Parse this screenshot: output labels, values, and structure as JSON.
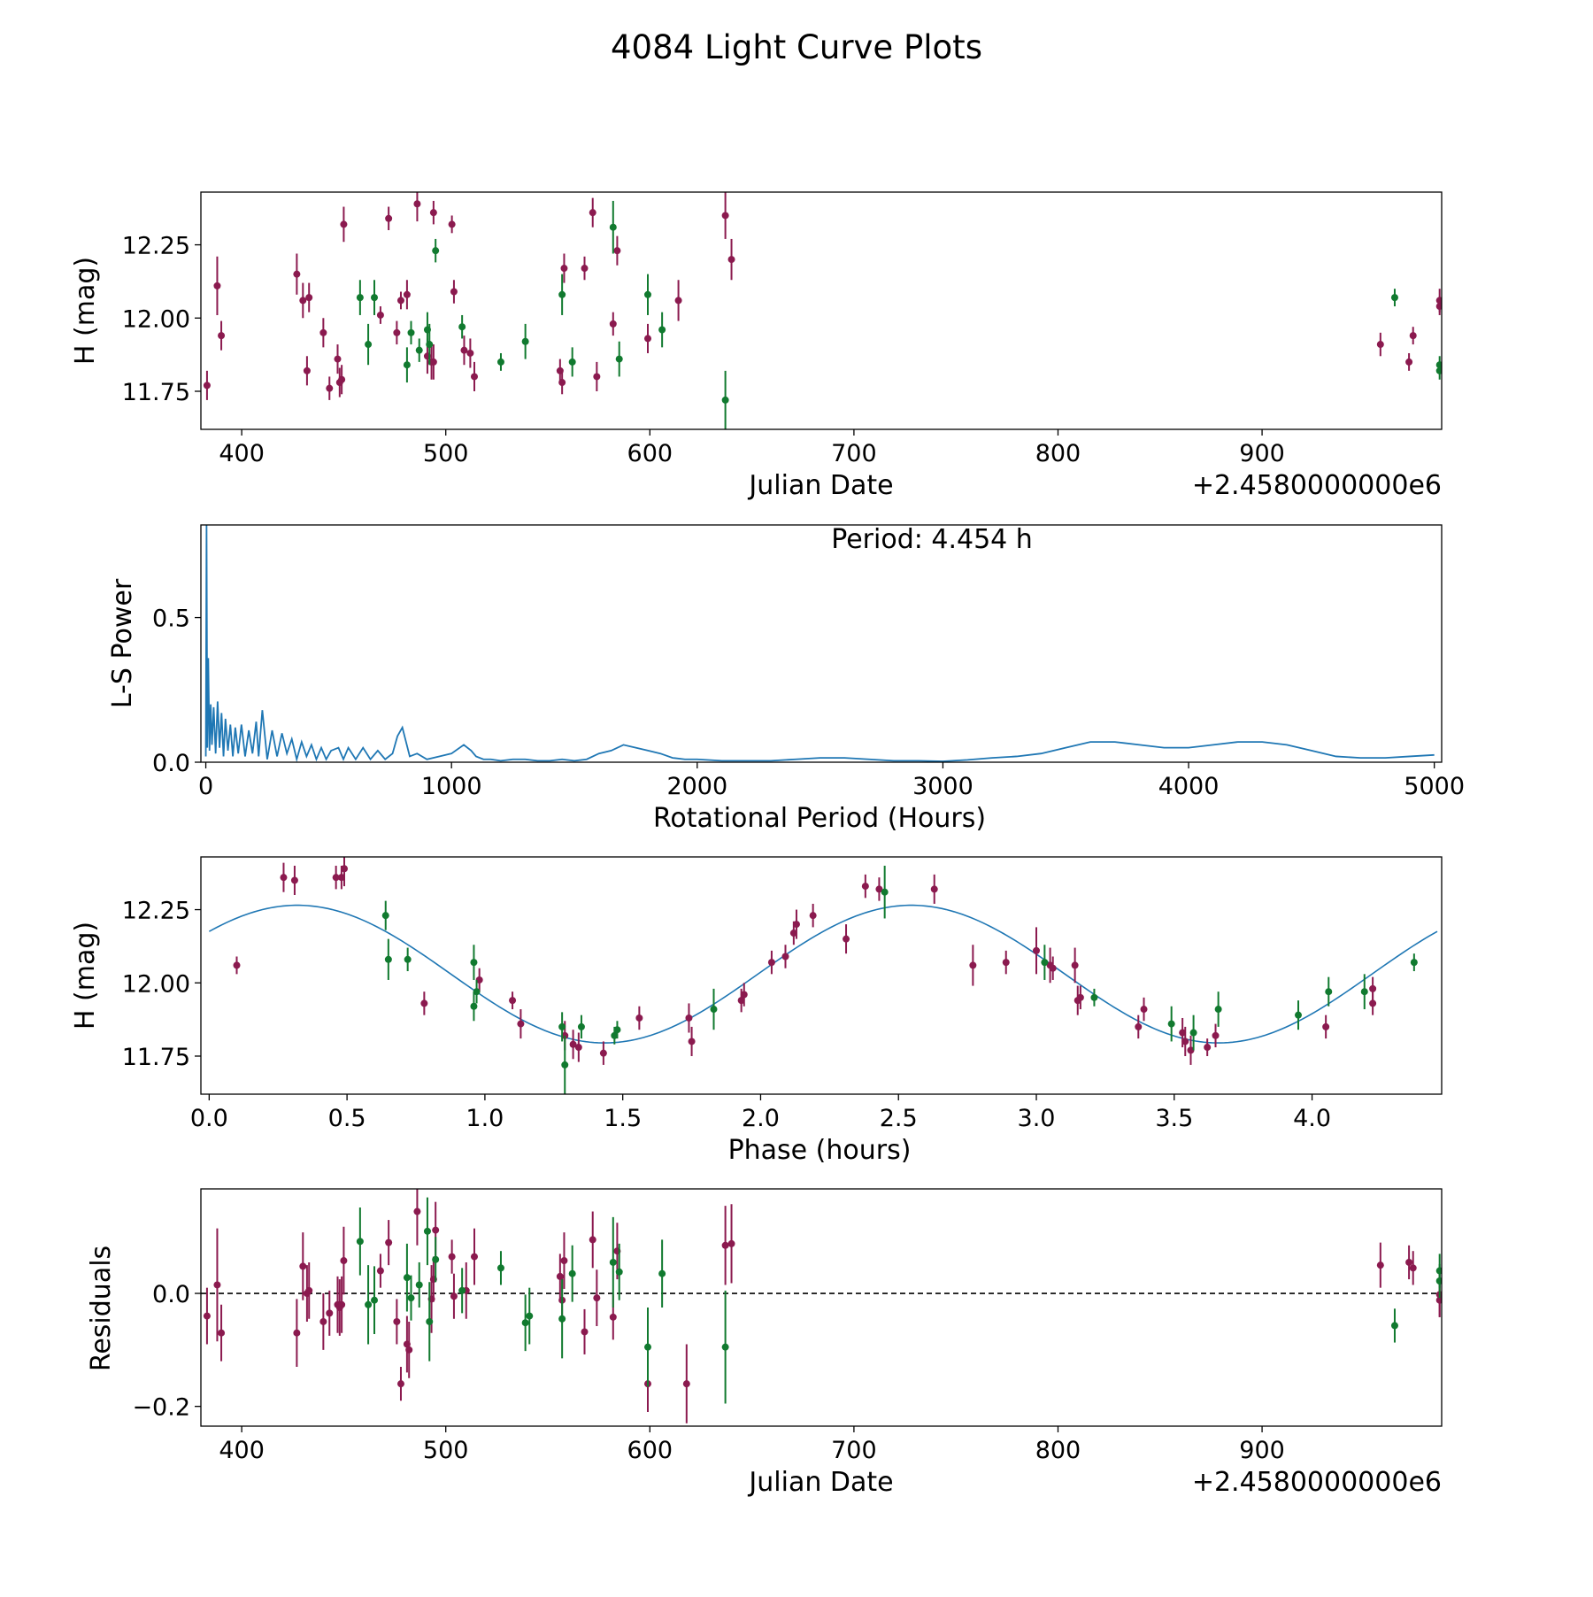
{
  "title": "4084 Light Curve Plots",
  "colors": {
    "red": "#8b1a4f",
    "green": "#117a2f",
    "line": "#1f77b4",
    "axis": "#000000"
  },
  "chart_data": [
    {
      "id": "lightcurve",
      "type": "scatter",
      "xlabel": "Julian Date",
      "ylabel": "H (mag)",
      "x_offset_label": "+2.4580000000e6",
      "xlim": [
        380,
        988
      ],
      "ylim": [
        11.62,
        12.43
      ],
      "xticks": [
        400,
        500,
        600,
        700,
        800,
        900
      ],
      "xtick_labels": [
        "400",
        "500",
        "600",
        "700",
        "800",
        "900"
      ],
      "yticks": [
        11.75,
        12.0,
        12.25
      ],
      "ytick_labels": [
        "11.75",
        "12.00",
        "12.25"
      ],
      "series": [
        {
          "name": "red",
          "color": "#8b1a4f",
          "x": [
            383,
            388,
            390,
            427,
            430,
            432,
            433,
            440,
            443,
            447,
            448,
            449,
            450,
            468,
            472,
            476,
            478,
            481,
            486,
            491,
            493,
            494,
            494,
            503,
            504,
            509,
            512,
            514,
            556,
            557,
            558,
            568,
            572,
            574,
            582,
            584,
            599,
            614,
            637,
            640,
            958,
            972,
            974,
            987,
            987
          ],
          "y": [
            11.77,
            12.11,
            11.94,
            12.15,
            12.06,
            11.82,
            12.07,
            11.95,
            11.76,
            11.86,
            11.78,
            11.79,
            12.32,
            12.01,
            12.34,
            11.95,
            12.06,
            12.08,
            12.39,
            11.87,
            11.85,
            12.36,
            11.85,
            12.32,
            12.09,
            11.89,
            11.88,
            11.8,
            11.82,
            11.78,
            12.17,
            12.17,
            12.36,
            11.8,
            11.98,
            12.23,
            11.93,
            12.06,
            12.35,
            12.2,
            11.91,
            11.85,
            11.94,
            12.06,
            12.04
          ],
          "err": [
            0.05,
            0.1,
            0.05,
            0.07,
            0.06,
            0.05,
            0.05,
            0.05,
            0.04,
            0.05,
            0.05,
            0.05,
            0.06,
            0.03,
            0.04,
            0.04,
            0.03,
            0.05,
            0.06,
            0.06,
            0.06,
            0.04,
            0.06,
            0.03,
            0.04,
            0.05,
            0.05,
            0.05,
            0.04,
            0.04,
            0.05,
            0.04,
            0.05,
            0.05,
            0.04,
            0.05,
            0.05,
            0.07,
            0.08,
            0.07,
            0.04,
            0.03,
            0.03,
            0.04,
            0.03
          ]
        },
        {
          "name": "green",
          "color": "#117a2f",
          "x": [
            458,
            462,
            465,
            481,
            483,
            487,
            491,
            492,
            495,
            508,
            527,
            539,
            557,
            562,
            582,
            585,
            599,
            606,
            637,
            965,
            987,
            987
          ],
          "y": [
            12.07,
            11.91,
            12.07,
            11.84,
            11.95,
            11.89,
            11.96,
            11.91,
            12.23,
            11.97,
            11.85,
            11.92,
            12.08,
            11.85,
            12.31,
            11.86,
            12.08,
            11.96,
            11.72,
            12.07,
            11.84,
            11.82
          ],
          "err": [
            0.06,
            0.07,
            0.06,
            0.06,
            0.04,
            0.04,
            0.06,
            0.07,
            0.04,
            0.04,
            0.03,
            0.06,
            0.07,
            0.05,
            0.09,
            0.06,
            0.07,
            0.06,
            0.1,
            0.03,
            0.03,
            0.03
          ]
        }
      ]
    },
    {
      "id": "periodogram",
      "type": "line",
      "xlabel": "Rotational Period (Hours)",
      "ylabel": "L-S Power",
      "annotation": "Period: 4.454 h",
      "xlim": [
        -20,
        5030
      ],
      "ylim": [
        0.0,
        0.82
      ],
      "xticks": [
        0,
        1000,
        2000,
        3000,
        4000,
        5000
      ],
      "xtick_labels": [
        "0",
        "1000",
        "2000",
        "3000",
        "4000",
        "5000"
      ],
      "yticks": [
        0.0,
        0.5
      ],
      "ytick_labels": [
        "0.0",
        "0.5"
      ],
      "series": [
        {
          "name": "power",
          "color": "#1f77b4",
          "x": [
            0,
            3,
            6,
            10,
            15,
            20,
            25,
            32,
            40,
            48,
            56,
            64,
            72,
            80,
            90,
            100,
            110,
            120,
            132,
            145,
            160,
            175,
            190,
            205,
            215,
            230,
            250,
            270,
            290,
            310,
            330,
            350,
            370,
            390,
            410,
            430,
            450,
            470,
            490,
            510,
            540,
            560,
            580,
            610,
            640,
            670,
            700,
            730,
            760,
            780,
            800,
            830,
            860,
            900,
            950,
            1000,
            1050,
            1080,
            1100,
            1130,
            1160,
            1200,
            1250,
            1300,
            1350,
            1400,
            1450,
            1500,
            1550,
            1600,
            1650,
            1700,
            1750,
            1800,
            1850,
            1900,
            1950,
            2000,
            2100,
            2200,
            2300,
            2400,
            2500,
            2600,
            2700,
            2800,
            2900,
            3000,
            3100,
            3200,
            3300,
            3400,
            3500,
            3600,
            3700,
            3800,
            3900,
            4000,
            4100,
            4200,
            4300,
            4400,
            4500,
            4600,
            4700,
            4800,
            4900,
            5000
          ],
          "y": [
            0.02,
            0.82,
            0.05,
            0.36,
            0.04,
            0.2,
            0.06,
            0.19,
            0.03,
            0.21,
            0.05,
            0.17,
            0.02,
            0.15,
            0.04,
            0.13,
            0.02,
            0.12,
            0.03,
            0.13,
            0.02,
            0.11,
            0.03,
            0.14,
            0.02,
            0.18,
            0.01,
            0.11,
            0.02,
            0.1,
            0.03,
            0.08,
            0.01,
            0.07,
            0.02,
            0.06,
            0.01,
            0.05,
            0.01,
            0.04,
            0.05,
            0.01,
            0.05,
            0.01,
            0.05,
            0.01,
            0.04,
            0.01,
            0.03,
            0.09,
            0.12,
            0.02,
            0.03,
            0.01,
            0.02,
            0.03,
            0.06,
            0.04,
            0.02,
            0.01,
            0.01,
            0.005,
            0.01,
            0.01,
            0.005,
            0.005,
            0.01,
            0.005,
            0.01,
            0.03,
            0.04,
            0.06,
            0.05,
            0.04,
            0.03,
            0.015,
            0.01,
            0.01,
            0.005,
            0.005,
            0.005,
            0.01,
            0.015,
            0.015,
            0.01,
            0.005,
            0.005,
            0.003,
            0.008,
            0.015,
            0.02,
            0.03,
            0.05,
            0.07,
            0.07,
            0.06,
            0.05,
            0.05,
            0.06,
            0.07,
            0.07,
            0.06,
            0.04,
            0.02,
            0.015,
            0.015,
            0.02,
            0.025
          ]
        }
      ]
    },
    {
      "id": "phased",
      "type": "scatter",
      "xlabel": "Phase (hours)",
      "ylabel": "H (mag)",
      "xlim": [
        -0.03,
        4.47
      ],
      "ylim": [
        11.62,
        12.43
      ],
      "xticks": [
        0.0,
        0.5,
        1.0,
        1.5,
        2.0,
        2.5,
        3.0,
        3.5,
        4.0
      ],
      "xtick_labels": [
        "0.0",
        "0.5",
        "1.0",
        "1.5",
        "2.0",
        "2.5",
        "3.0",
        "3.5",
        "4.0"
      ],
      "yticks": [
        11.75,
        12.0,
        12.25
      ],
      "ytick_labels": [
        "11.75",
        "12.00",
        "12.25"
      ],
      "fit": {
        "type": "sine",
        "period": 2.227,
        "mean": 12.03,
        "amplitude": 0.235,
        "peak_phase": 0.32,
        "color": "#1f77b4"
      },
      "series": [
        {
          "name": "red",
          "color": "#8b1a4f",
          "x": [
            0.1,
            0.27,
            0.31,
            0.46,
            0.48,
            0.49,
            0.78,
            0.98,
            1.1,
            1.13,
            1.29,
            1.32,
            1.34,
            1.43,
            1.56,
            1.74,
            1.75,
            1.93,
            1.94,
            2.04,
            2.09,
            2.12,
            2.13,
            2.19,
            2.31,
            2.38,
            2.43,
            2.63,
            2.77,
            2.89,
            3.0,
            3.05,
            3.06,
            3.14,
            3.15,
            3.16,
            3.37,
            3.39,
            3.53,
            3.54,
            3.56,
            3.62,
            3.65,
            4.05,
            4.22,
            4.22
          ],
          "y": [
            12.06,
            12.36,
            12.35,
            12.36,
            12.36,
            12.39,
            11.93,
            12.01,
            11.94,
            11.86,
            11.82,
            11.79,
            11.78,
            11.76,
            11.88,
            11.88,
            11.8,
            11.94,
            11.96,
            12.07,
            12.09,
            12.17,
            12.2,
            12.23,
            12.15,
            12.33,
            12.32,
            12.32,
            12.06,
            12.07,
            12.11,
            12.06,
            12.05,
            12.06,
            11.94,
            11.95,
            11.85,
            11.91,
            11.83,
            11.8,
            11.77,
            11.78,
            11.82,
            11.85,
            11.98,
            11.93
          ],
          "err": [
            0.03,
            0.05,
            0.05,
            0.04,
            0.04,
            0.06,
            0.04,
            0.04,
            0.03,
            0.05,
            0.05,
            0.05,
            0.05,
            0.04,
            0.04,
            0.05,
            0.05,
            0.04,
            0.04,
            0.04,
            0.04,
            0.04,
            0.05,
            0.04,
            0.05,
            0.04,
            0.04,
            0.05,
            0.07,
            0.04,
            0.08,
            0.06,
            0.04,
            0.06,
            0.05,
            0.04,
            0.04,
            0.04,
            0.05,
            0.05,
            0.05,
            0.03,
            0.04,
            0.04,
            0.04,
            0.04
          ]
        },
        {
          "name": "green",
          "color": "#117a2f",
          "x": [
            0.64,
            0.65,
            0.72,
            0.96,
            0.96,
            0.97,
            1.28,
            1.29,
            1.35,
            1.47,
            1.48,
            1.83,
            2.45,
            3.03,
            3.21,
            3.49,
            3.57,
            3.66,
            3.95,
            4.06,
            4.19,
            4.37
          ],
          "y": [
            12.23,
            12.08,
            12.08,
            12.07,
            11.92,
            11.97,
            11.85,
            11.72,
            11.85,
            11.82,
            11.84,
            11.91,
            12.31,
            12.07,
            11.95,
            11.86,
            11.83,
            11.91,
            11.89,
            11.97,
            11.97,
            12.07
          ],
          "err": [
            0.05,
            0.07,
            0.04,
            0.06,
            0.05,
            0.04,
            0.05,
            0.1,
            0.04,
            0.03,
            0.03,
            0.07,
            0.09,
            0.06,
            0.03,
            0.06,
            0.06,
            0.06,
            0.05,
            0.05,
            0.06,
            0.03
          ]
        }
      ]
    },
    {
      "id": "residuals",
      "type": "scatter",
      "xlabel": "Julian Date",
      "ylabel": "Residuals",
      "x_offset_label": "+2.4580000000e6",
      "xlim": [
        380,
        988
      ],
      "ylim": [
        -0.235,
        0.185
      ],
      "xticks": [
        400,
        500,
        600,
        700,
        800,
        900
      ],
      "xtick_labels": [
        "400",
        "500",
        "600",
        "700",
        "800",
        "900"
      ],
      "yticks": [
        -0.2,
        0.0
      ],
      "ytick_labels": [
        "−0.2",
        "0.0"
      ],
      "zero_line": true,
      "series": [
        {
          "name": "red",
          "color": "#8b1a4f",
          "x": [
            383,
            388,
            390,
            427,
            430,
            432,
            433,
            440,
            443,
            447,
            448,
            449,
            450,
            468,
            472,
            476,
            478,
            481,
            482,
            486,
            493,
            494,
            495,
            503,
            504,
            510,
            514,
            556,
            557,
            558,
            568,
            572,
            574,
            582,
            584,
            599,
            618,
            637,
            640,
            958,
            972,
            974,
            987,
            987
          ],
          "y": [
            -0.04,
            0.015,
            -0.07,
            -0.07,
            0.048,
            0.0,
            0.005,
            -0.05,
            -0.035,
            -0.02,
            -0.025,
            -0.02,
            0.058,
            0.04,
            0.09,
            -0.05,
            -0.16,
            -0.09,
            -0.1,
            0.145,
            -0.01,
            0.025,
            0.112,
            0.065,
            -0.005,
            0.005,
            0.065,
            0.03,
            -0.012,
            0.058,
            -0.068,
            0.095,
            -0.008,
            -0.042,
            0.075,
            -0.16,
            -0.16,
            0.085,
            0.088,
            0.05,
            0.055,
            0.045,
            -0.002,
            -0.012
          ],
          "err": [
            0.05,
            0.1,
            0.05,
            0.06,
            0.06,
            0.05,
            0.05,
            0.05,
            0.04,
            0.05,
            0.05,
            0.05,
            0.06,
            0.03,
            0.04,
            0.04,
            0.03,
            0.05,
            0.05,
            0.06,
            0.06,
            0.04,
            0.05,
            0.03,
            0.04,
            0.05,
            0.05,
            0.04,
            0.04,
            0.05,
            0.04,
            0.05,
            0.05,
            0.04,
            0.05,
            0.05,
            0.07,
            0.07,
            0.07,
            0.04,
            0.03,
            0.03,
            0.04,
            0.03
          ]
        },
        {
          "name": "green",
          "color": "#117a2f",
          "x": [
            458,
            462,
            465,
            481,
            483,
            487,
            491,
            492,
            495,
            508,
            527,
            539,
            541,
            557,
            562,
            582,
            585,
            599,
            606,
            637,
            965,
            987,
            987
          ],
          "y": [
            0.092,
            -0.02,
            -0.012,
            0.028,
            -0.008,
            0.015,
            0.11,
            -0.05,
            0.06,
            0.005,
            0.045,
            -0.052,
            -0.04,
            -0.045,
            0.035,
            0.055,
            0.038,
            -0.095,
            0.035,
            -0.095,
            -0.057,
            0.022,
            0.04
          ],
          "err": [
            0.06,
            0.07,
            0.06,
            0.06,
            0.04,
            0.04,
            0.06,
            0.07,
            0.04,
            0.04,
            0.03,
            0.05,
            0.05,
            0.07,
            0.05,
            0.08,
            0.05,
            0.07,
            0.06,
            0.1,
            0.03,
            0.03,
            0.03
          ]
        }
      ]
    }
  ]
}
